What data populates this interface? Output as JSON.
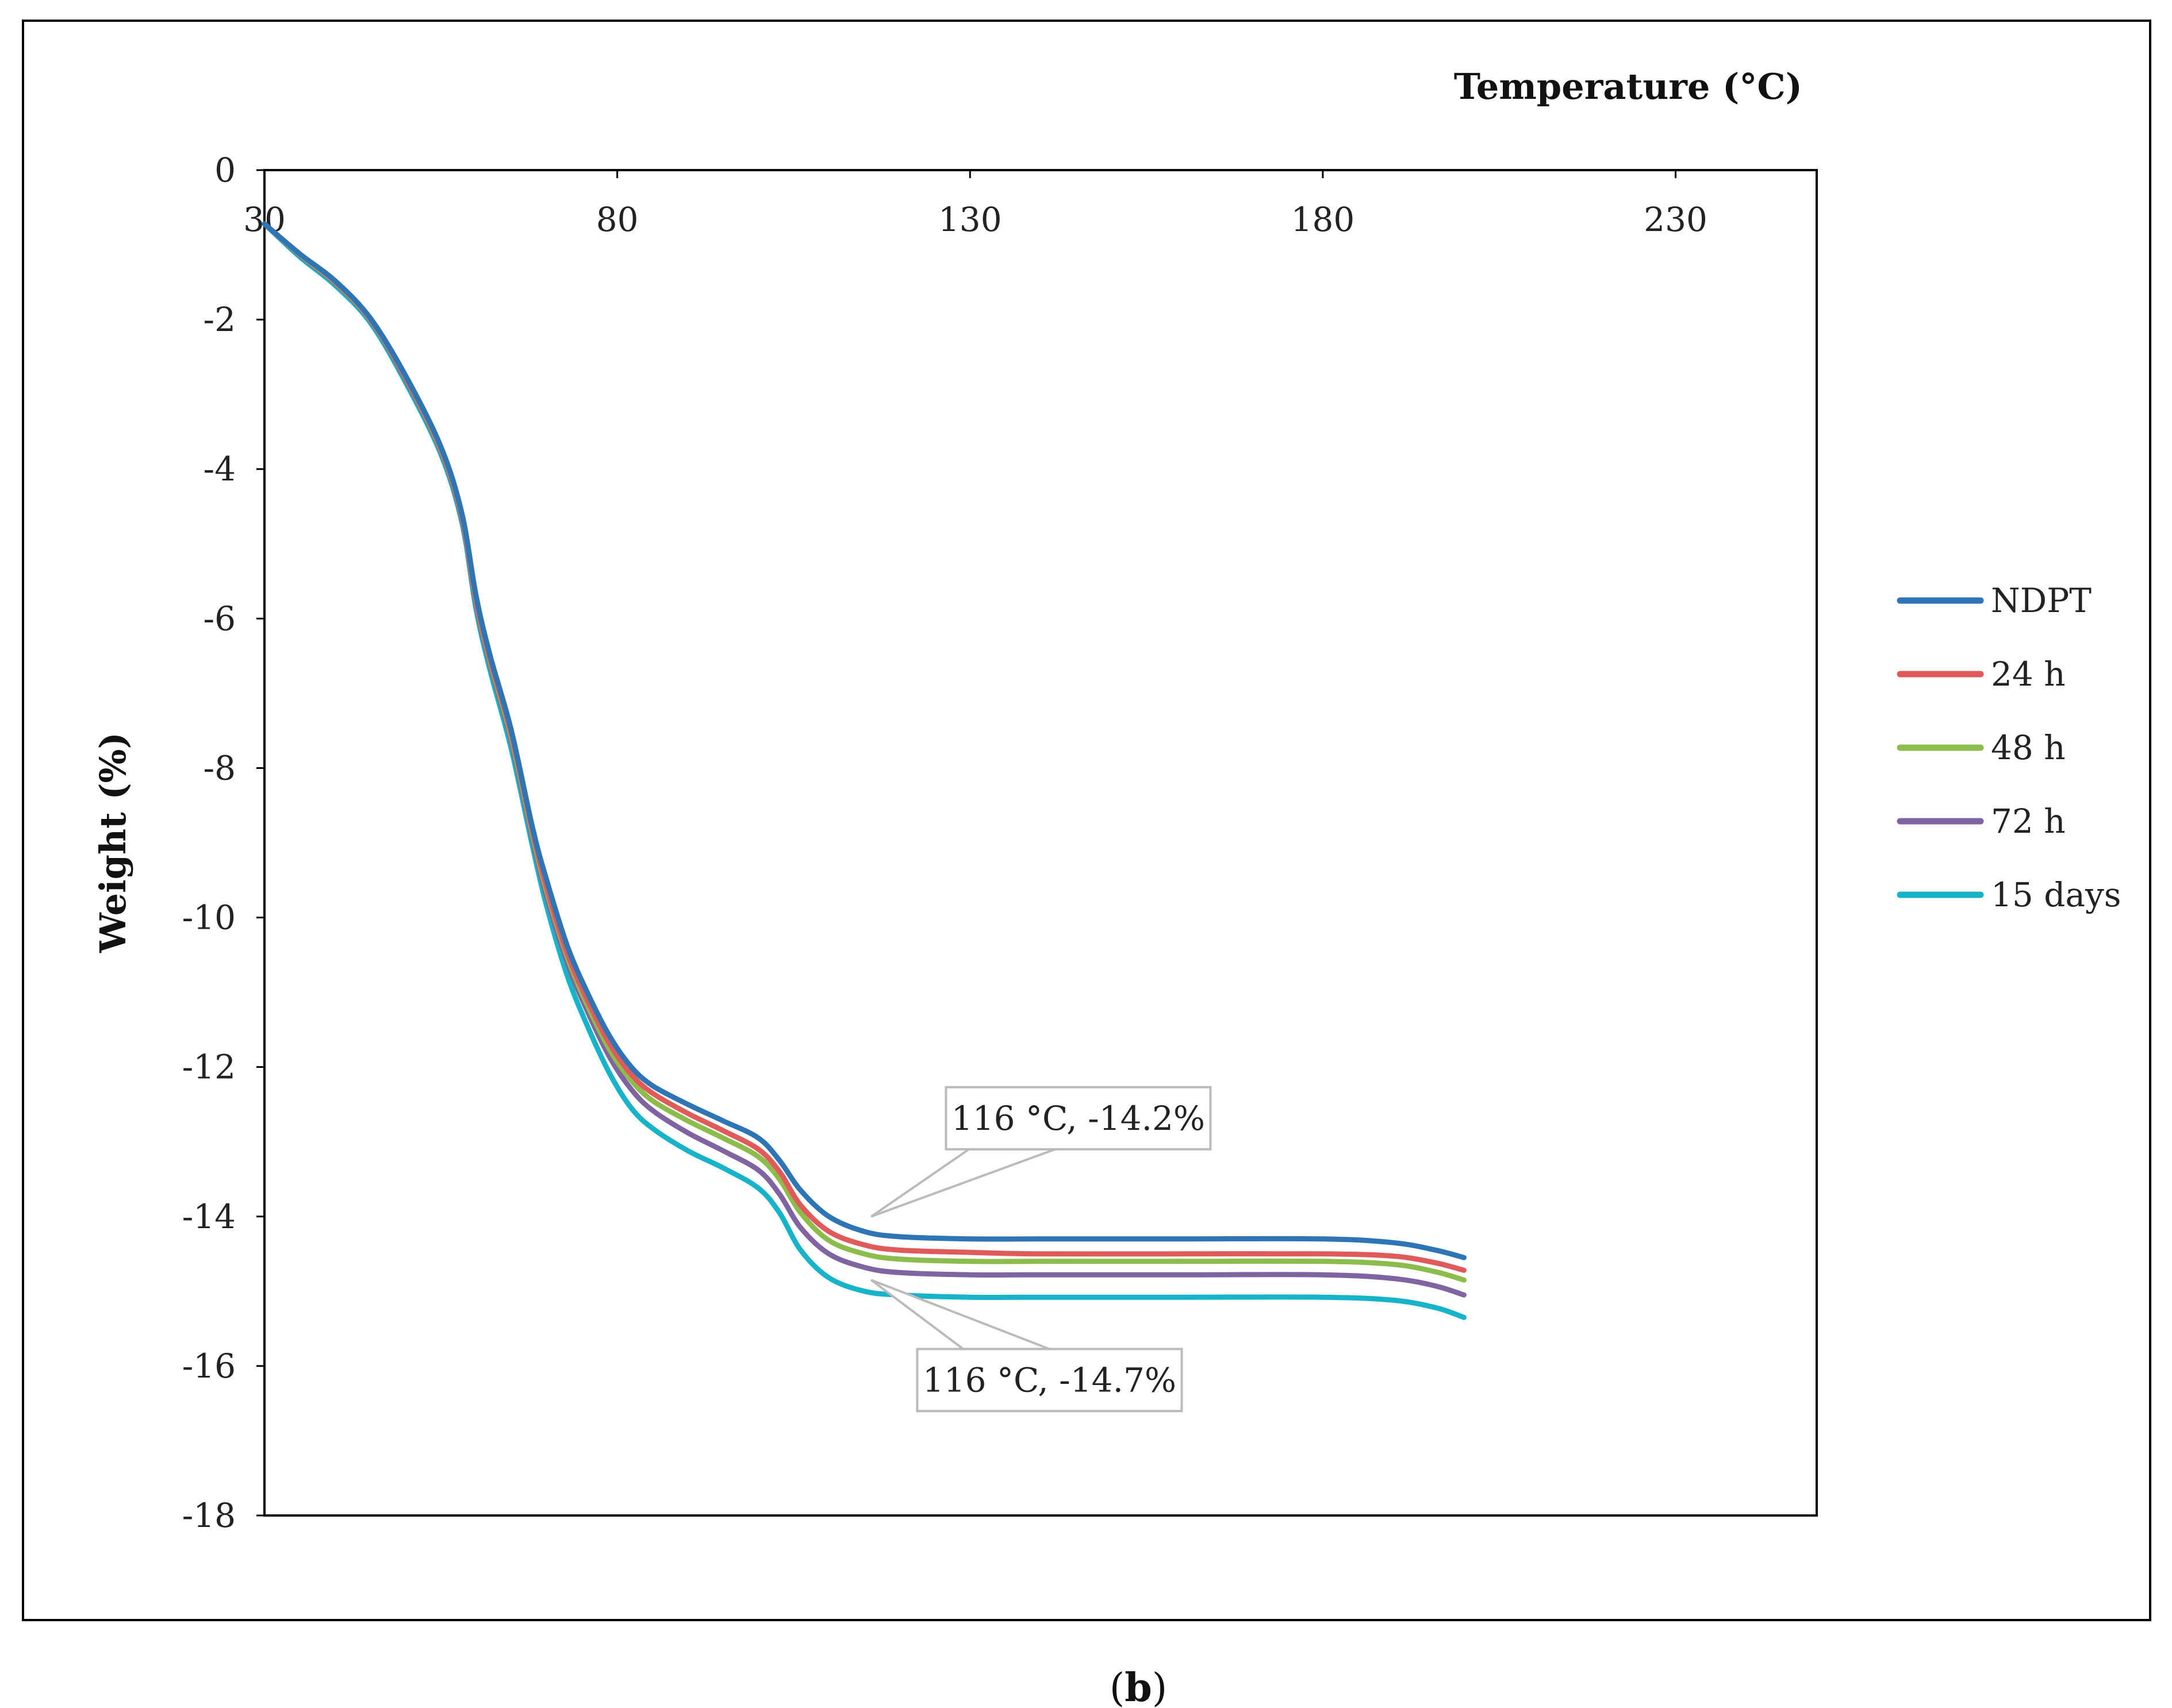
{
  "chart_data": {
    "type": "line",
    "title": "",
    "xlabel": "Temperature (°C)",
    "ylabel": "Weight (%)",
    "xlim": [
      30,
      250
    ],
    "ylim": [
      -18,
      0
    ],
    "xticks": [
      "30",
      "80",
      "130",
      "180",
      "230"
    ],
    "yticks": [
      "0",
      "-2",
      "-4",
      "-6",
      "-8",
      "-10",
      "-12",
      "-14",
      "-16",
      "-18"
    ],
    "legend_position": "right",
    "series": [
      {
        "name": "NDPT",
        "color": "#2e75b6",
        "x": [
          30,
          35,
          40,
          45,
          50,
          55,
          58,
          60,
          62,
          65,
          68,
          70,
          73,
          76,
          79,
          82,
          85,
          90,
          95,
          100,
          103,
          106,
          110,
          115,
          120,
          130,
          140,
          160,
          180,
          190,
          196,
          200
        ],
        "y": [
          -0.72,
          -1.12,
          -1.48,
          -1.98,
          -2.75,
          -3.7,
          -4.6,
          -5.7,
          -6.5,
          -7.5,
          -8.8,
          -9.5,
          -10.4,
          -11.05,
          -11.6,
          -12.0,
          -12.25,
          -12.5,
          -12.72,
          -12.95,
          -13.25,
          -13.65,
          -14.0,
          -14.2,
          -14.27,
          -14.3,
          -14.3,
          -14.3,
          -14.3,
          -14.35,
          -14.45,
          -14.55
        ]
      },
      {
        "name": "24 h",
        "color": "#e15a5a",
        "x": [
          30,
          35,
          40,
          45,
          50,
          55,
          58,
          60,
          62,
          65,
          68,
          70,
          73,
          76,
          79,
          82,
          85,
          90,
          95,
          100,
          103,
          106,
          110,
          115,
          120,
          130,
          140,
          160,
          180,
          190,
          196,
          200
        ],
        "y": [
          -0.72,
          -1.12,
          -1.49,
          -1.99,
          -2.77,
          -3.72,
          -4.63,
          -5.75,
          -6.55,
          -7.55,
          -8.85,
          -9.6,
          -10.5,
          -11.15,
          -11.7,
          -12.1,
          -12.35,
          -12.62,
          -12.85,
          -13.1,
          -13.4,
          -13.85,
          -14.2,
          -14.38,
          -14.45,
          -14.48,
          -14.5,
          -14.5,
          -14.5,
          -14.53,
          -14.62,
          -14.72
        ]
      },
      {
        "name": "48 h",
        "color": "#8cbc4b",
        "x": [
          30,
          35,
          40,
          45,
          50,
          55,
          58,
          60,
          62,
          65,
          68,
          70,
          73,
          76,
          79,
          82,
          85,
          90,
          95,
          100,
          103,
          106,
          110,
          115,
          120,
          130,
          140,
          160,
          180,
          190,
          196,
          200
        ],
        "y": [
          -0.72,
          -1.13,
          -1.5,
          -2.0,
          -2.78,
          -3.74,
          -4.65,
          -5.78,
          -6.58,
          -7.6,
          -8.9,
          -9.65,
          -10.55,
          -11.22,
          -11.78,
          -12.18,
          -12.45,
          -12.72,
          -12.95,
          -13.2,
          -13.5,
          -13.95,
          -14.32,
          -14.5,
          -14.57,
          -14.6,
          -14.6,
          -14.6,
          -14.6,
          -14.64,
          -14.74,
          -14.85
        ]
      },
      {
        "name": "72 h",
        "color": "#8064a2",
        "x": [
          30,
          35,
          40,
          45,
          50,
          55,
          58,
          60,
          62,
          65,
          68,
          70,
          73,
          76,
          79,
          82,
          85,
          90,
          95,
          100,
          103,
          106,
          110,
          115,
          120,
          130,
          140,
          160,
          180,
          190,
          196,
          200
        ],
        "y": [
          -0.72,
          -1.14,
          -1.51,
          -2.01,
          -2.8,
          -3.76,
          -4.68,
          -5.82,
          -6.62,
          -7.65,
          -8.95,
          -9.72,
          -10.62,
          -11.3,
          -11.88,
          -12.3,
          -12.58,
          -12.88,
          -13.12,
          -13.38,
          -13.7,
          -14.15,
          -14.5,
          -14.68,
          -14.75,
          -14.78,
          -14.78,
          -14.78,
          -14.78,
          -14.83,
          -14.93,
          -15.05
        ]
      },
      {
        "name": "15 days",
        "color": "#17b3c9",
        "x": [
          30,
          35,
          40,
          45,
          50,
          55,
          58,
          60,
          62,
          65,
          68,
          70,
          73,
          76,
          79,
          82,
          85,
          90,
          95,
          100,
          103,
          106,
          110,
          115,
          120,
          130,
          140,
          160,
          180,
          190,
          196,
          200
        ],
        "y": [
          -0.72,
          -1.16,
          -1.54,
          -2.04,
          -2.84,
          -3.8,
          -4.72,
          -5.88,
          -6.7,
          -7.75,
          -9.05,
          -9.85,
          -10.8,
          -11.5,
          -12.1,
          -12.55,
          -12.82,
          -13.12,
          -13.35,
          -13.62,
          -13.95,
          -14.45,
          -14.82,
          -15.0,
          -15.05,
          -15.08,
          -15.08,
          -15.08,
          -15.08,
          -15.12,
          -15.22,
          -15.35
        ]
      }
    ],
    "annotations": [
      {
        "text": "116 °C, -14.2%",
        "x": 116,
        "y": -14.2
      },
      {
        "text": "116 °C, -14.7%",
        "x": 116,
        "y": -14.7
      }
    ]
  },
  "caption": {
    "open": "(",
    "letter": "b",
    "close": ")"
  }
}
